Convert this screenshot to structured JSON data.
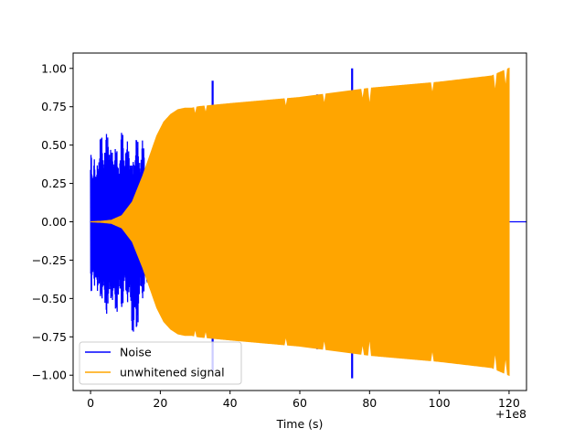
{
  "chart_data": {
    "type": "line",
    "title": "",
    "xlabel": "Time (s)",
    "ylabel": "",
    "offset_text": "+1e8",
    "xlim": [
      -5,
      125
    ],
    "ylim": [
      -1.1,
      1.1
    ],
    "xticks": [
      0,
      20,
      40,
      60,
      80,
      100,
      120
    ],
    "yticks": [
      -1.0,
      -0.75,
      -0.5,
      -0.25,
      0.0,
      0.25,
      0.5,
      0.75,
      1.0
    ],
    "xtick_labels": [
      "0",
      "20",
      "40",
      "60",
      "80",
      "100",
      "120"
    ],
    "ytick_labels": [
      "−1.00",
      "−0.75",
      "−0.50",
      "−0.25",
      "0.00",
      "0.25",
      "0.50",
      "0.75",
      "1.00"
    ],
    "grid": false,
    "legend_position": "lower-left",
    "series": [
      {
        "name": "Noise",
        "color": "#0000ff",
        "envelope": {
          "x": [
            0,
            0.5,
            1,
            1.5,
            2,
            3,
            4,
            5,
            6,
            7,
            8,
            9,
            10,
            11,
            12,
            13,
            14,
            15,
            16,
            17,
            18,
            19,
            20
          ],
          "upper": [
            0.52,
            0.35,
            0.5,
            0.28,
            0.45,
            0.6,
            0.5,
            0.65,
            0.45,
            0.55,
            0.4,
            0.63,
            0.5,
            0.55,
            0.35,
            0.62,
            0.45,
            0.55,
            0.4,
            0.3,
            0.2,
            0.1,
            0.03
          ],
          "lower": [
            -0.52,
            -0.42,
            -0.5,
            -0.35,
            -0.55,
            -0.5,
            -0.6,
            -0.62,
            -0.5,
            -0.65,
            -0.55,
            -0.58,
            -0.5,
            -0.55,
            -0.75,
            -0.8,
            -0.55,
            -0.5,
            -0.45,
            -0.35,
            -0.25,
            -0.12,
            -0.03
          ]
        },
        "spikes": [
          {
            "x": 35,
            "min": -0.97,
            "max": 0.92
          },
          {
            "x": 65,
            "min": -0.83,
            "max": 0.83
          },
          {
            "x": 75,
            "min": -1.02,
            "max": 1.0
          }
        ]
      },
      {
        "name": "unwhitened signal",
        "color": "#ffa500",
        "envelope": {
          "x": [
            0,
            3,
            6,
            9,
            12,
            15,
            17,
            19,
            21,
            23,
            25,
            27,
            29,
            31,
            40,
            60,
            80,
            100,
            115,
            120
          ],
          "amplitude": [
            0.0,
            0.003,
            0.01,
            0.04,
            0.13,
            0.3,
            0.43,
            0.56,
            0.65,
            0.7,
            0.73,
            0.74,
            0.74,
            0.75,
            0.77,
            0.81,
            0.87,
            0.91,
            0.95,
            1.0
          ]
        },
        "dips": [
          {
            "x": 30,
            "upper": 0.71
          },
          {
            "x": 33,
            "upper": 0.72
          },
          {
            "x": 56,
            "upper": 0.76
          },
          {
            "x": 67,
            "upper": 0.78
          },
          {
            "x": 78,
            "upper": 0.81
          },
          {
            "x": 80,
            "upper": 0.78
          },
          {
            "x": 98,
            "upper": 0.85
          },
          {
            "x": 116,
            "upper": 0.87
          },
          {
            "x": 119,
            "upper": 0.9
          }
        ]
      }
    ]
  }
}
